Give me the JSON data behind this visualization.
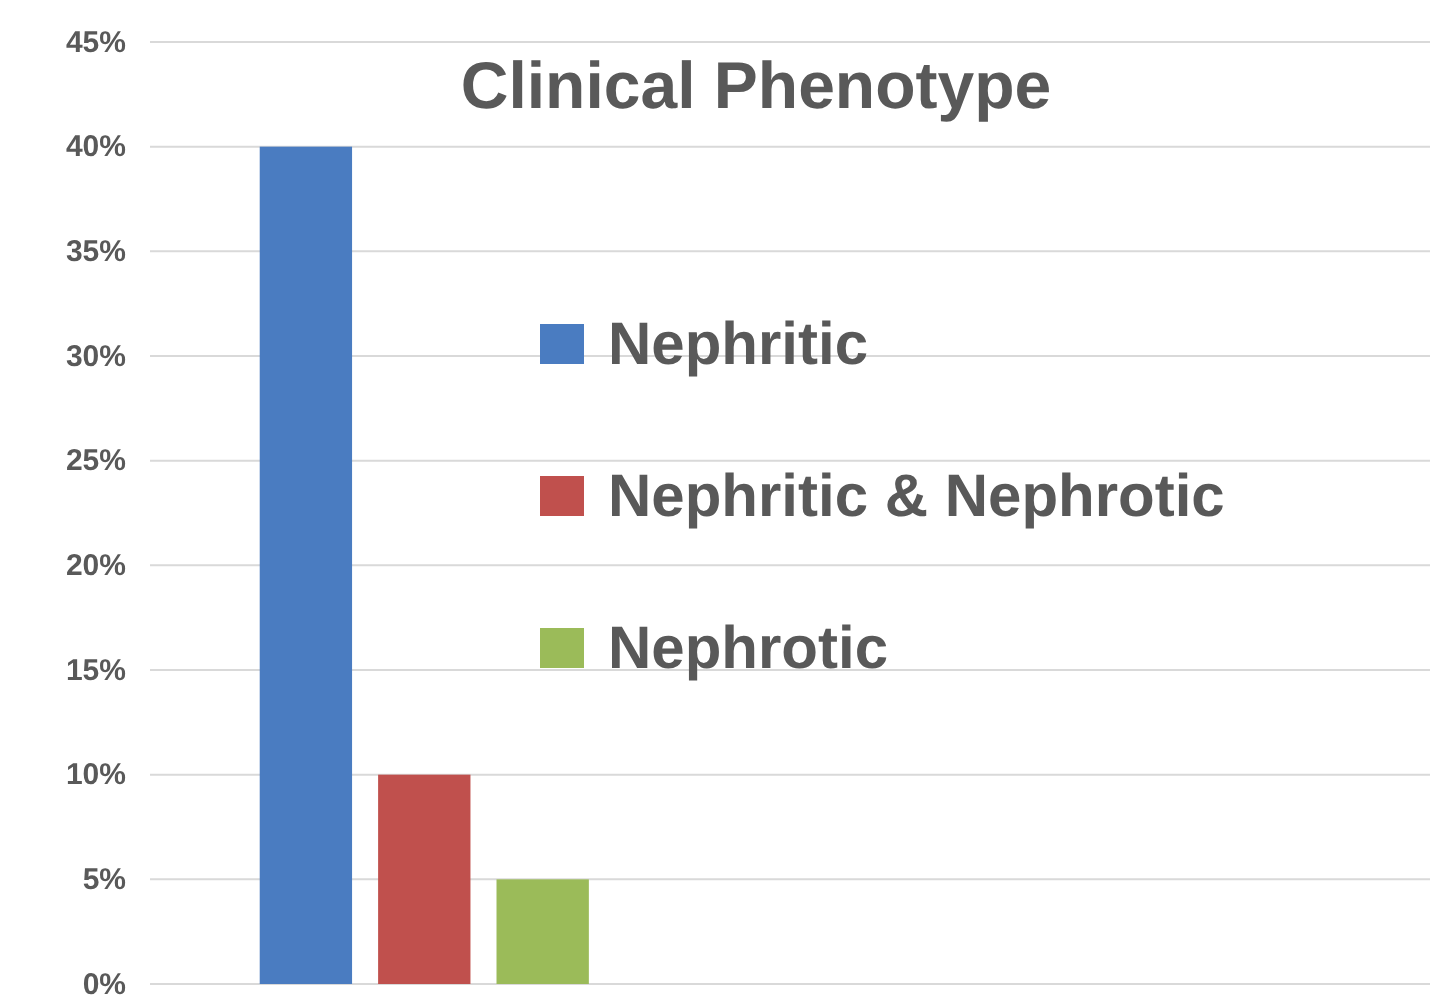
{
  "chart_data": {
    "type": "bar",
    "title": "Clinical Phenotype",
    "categories": [
      null,
      null,
      null
    ],
    "series": [
      {
        "name": "Nephritic",
        "color": "#4a7cc1",
        "values": [
          40,
          null,
          null
        ]
      },
      {
        "name": "Nephritic & Nephrotic",
        "color": "#c0504d",
        "values": [
          10,
          null,
          null
        ]
      },
      {
        "name": "Nephrotic",
        "color": "#9bbb59",
        "values": [
          5,
          null,
          null
        ]
      }
    ],
    "ylim": [
      0,
      45
    ],
    "yticks": [
      {
        "value": 0,
        "label": "0%"
      },
      {
        "value": 5,
        "label": "5%"
      },
      {
        "value": 10,
        "label": "10%"
      },
      {
        "value": 15,
        "label": "15%"
      },
      {
        "value": 20,
        "label": "20%"
      },
      {
        "value": 25,
        "label": "25%"
      },
      {
        "value": 30,
        "label": "30%"
      },
      {
        "value": 35,
        "label": "35%"
      },
      {
        "value": 40,
        "label": "40%"
      },
      {
        "value": 45,
        "label": "45%"
      }
    ],
    "grid": "y",
    "legend": "right"
  }
}
